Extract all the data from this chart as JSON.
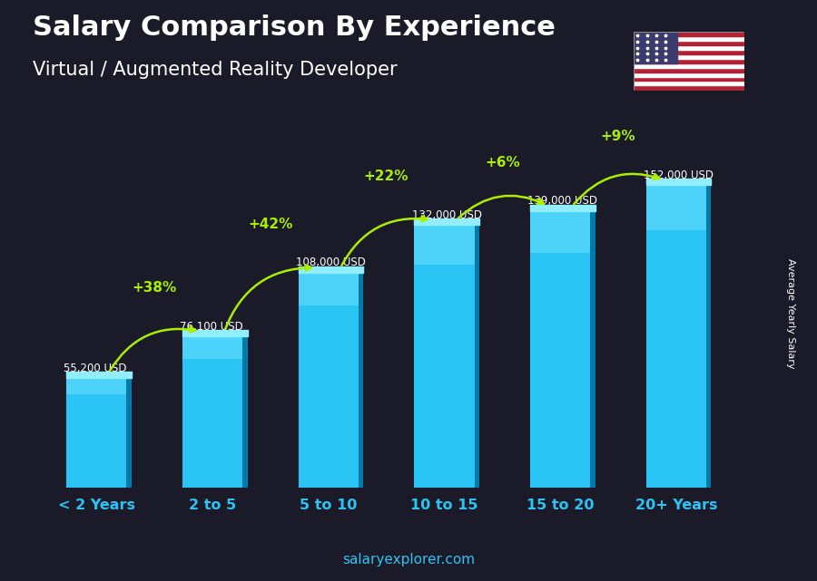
{
  "title": "Salary Comparison By Experience",
  "subtitle": "Virtual / Augmented Reality Developer",
  "categories": [
    "< 2 Years",
    "2 to 5",
    "5 to 10",
    "10 to 15",
    "15 to 20",
    "20+ Years"
  ],
  "values": [
    55200,
    76100,
    108000,
    132000,
    139000,
    152000
  ],
  "value_labels": [
    "55,200 USD",
    "76,100 USD",
    "108,000 USD",
    "132,000 USD",
    "139,000 USD",
    "152,000 USD"
  ],
  "pct_changes": [
    "+38%",
    "+42%",
    "+22%",
    "+6%",
    "+9%"
  ],
  "bar_color_main": "#2BC5F5",
  "bar_color_light": "#70DFFF",
  "bar_color_side": "#007AAA",
  "bar_color_top": "#90EEFF",
  "background_color": "#1a1a28",
  "text_white": "#FFFFFF",
  "text_cyan": "#2BC5F5",
  "text_green": "#AAEE00",
  "ylabel_text": "Average Yearly Salary",
  "footer_text": "salaryexplorer.com",
  "ylim_max": 175000,
  "bar_width": 0.52
}
